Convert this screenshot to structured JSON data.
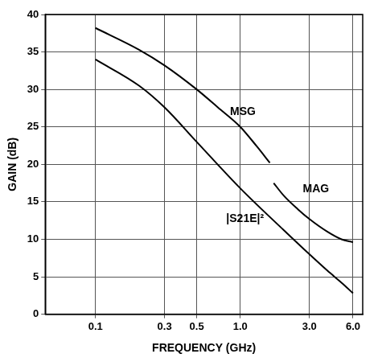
{
  "chart_data": {
    "type": "line",
    "log": "x",
    "grid": true,
    "x_label": "FREQUENCY (GHz)",
    "y_label": "GAIN (dB)",
    "xlim": [
      0.045,
      7
    ],
    "xticks": [
      0.1,
      0.3,
      0.5,
      {
        "value": 1,
        "label": "1.0"
      },
      {
        "value": 3,
        "label": "3.0"
      },
      {
        "value": 6,
        "label": "6.0"
      }
    ],
    "ylim": [
      0,
      40
    ],
    "yticks": [
      0,
      5,
      10,
      15,
      20,
      25,
      30,
      35,
      40
    ],
    "series": [
      {
        "name": "MSG",
        "color": "#000000",
        "line_style": "solid",
        "x": [
          0.1,
          0.2,
          0.3,
          0.5,
          0.7,
          1.0,
          1.3,
          1.6
        ],
        "values": [
          38.2,
          35.3,
          33.2,
          30,
          27.6,
          25,
          22.4,
          20.2
        ],
        "label_x": 0.85,
        "label_y": 27
      },
      {
        "name": "MAG",
        "color": "#000000",
        "line_style": "solid",
        "x": [
          1.7,
          2.0,
          2.5,
          3.0,
          4.0,
          5.0,
          6.0
        ],
        "values": [
          17.5,
          15.8,
          14,
          12.7,
          11,
          10,
          9.6
        ],
        "label_x": 2.7,
        "label_y": 16.7
      },
      {
        "name": "|S21E|²",
        "color": "#000000",
        "line_style": "solid",
        "x": [
          0.1,
          0.2,
          0.3,
          0.5,
          1.0,
          2.0,
          3.0,
          4.0,
          5.0,
          6.0
        ],
        "values": [
          34,
          30.5,
          27.6,
          23,
          16.8,
          11.2,
          8,
          5.8,
          4.2,
          2.8
        ],
        "label_x": 0.8,
        "label_y": 12.7
      }
    ]
  }
}
